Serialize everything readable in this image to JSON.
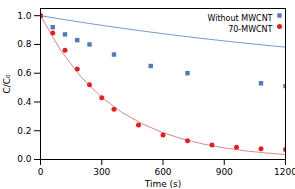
{
  "chart_data": {
    "type": "scatter",
    "xlabel": "Time (s)",
    "ylabel": "C/C₀",
    "xlim": [
      0,
      1200
    ],
    "ylim": [
      0.0,
      1.05
    ],
    "xticks": [
      0,
      300,
      600,
      900,
      1200
    ],
    "yticks": [
      {
        "value": 0.0,
        "label": "0.0"
      },
      0.2,
      0.4,
      0.6,
      0.8,
      {
        "value": 1.0,
        "label": "1.0"
      }
    ],
    "legend": "upper right",
    "series": [
      {
        "type": "line",
        "color": "#7799cc",
        "x": [
          0,
          100,
          200,
          300,
          400,
          500,
          600,
          700,
          800,
          900,
          1000,
          1100,
          1200
        ],
        "values": [
          1,
          0.9766,
          0.9542,
          0.9329,
          0.9127,
          0.8933,
          0.8749,
          0.8573,
          0.8406,
          0.8246,
          0.8094,
          0.7949,
          0.7811
        ]
      },
      {
        "name": "Without MWCNT",
        "type": "scatter",
        "marker": "square",
        "color": "#5577bb",
        "x": [
          0,
          60,
          120,
          180,
          240,
          360,
          540,
          720,
          1080,
          1200
        ],
        "values": [
          1.0,
          0.92,
          0.87,
          0.83,
          0.8,
          0.73,
          0.65,
          0.6,
          0.53,
          0.51
        ]
      },
      {
        "type": "line",
        "color": "#dd8888",
        "x": [
          0,
          100,
          200,
          300,
          400,
          500,
          600,
          700,
          800,
          900,
          1000,
          1100,
          1200
        ],
        "values": [
          1,
          0.7558,
          0.5712,
          0.4317,
          0.3263,
          0.2466,
          0.1864,
          0.1409,
          0.1065,
          0.0805,
          0.0608,
          0.046,
          0.0347
        ]
      },
      {
        "name": "70-MWCNT",
        "type": "scatter",
        "marker": "circle",
        "color": "#dd2222",
        "x": [
          0,
          60,
          120,
          180,
          240,
          300,
          360,
          480,
          600,
          720,
          840,
          960,
          1080,
          1200
        ],
        "values": [
          1.0,
          0.88,
          0.76,
          0.63,
          0.52,
          0.43,
          0.35,
          0.24,
          0.17,
          0.13,
          0.1,
          0.085,
          0.075,
          0.07
        ]
      }
    ]
  }
}
